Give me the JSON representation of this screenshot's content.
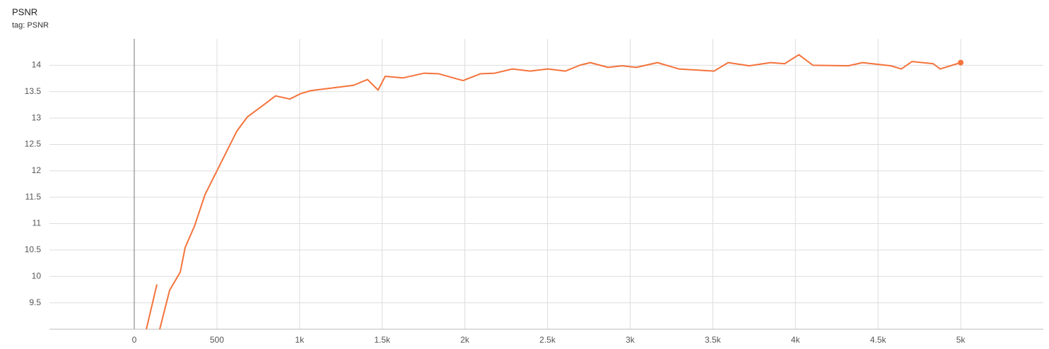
{
  "chart_data": {
    "type": "line",
    "title": "PSNR",
    "subtitle": "tag: PSNR",
    "x": [
      73,
      137,
      null,
      154,
      214,
      278,
      308,
      364,
      428,
      492,
      556,
      620,
      684,
      770,
      855,
      941,
      1005,
      1069,
      1198,
      1326,
      1411,
      1475,
      1518,
      1625,
      1754,
      1839,
      1989,
      2096,
      2181,
      2288,
      2395,
      2502,
      2609,
      2695,
      2759,
      2866,
      2951,
      3037,
      3165,
      3294,
      3508,
      3593,
      3721,
      3849,
      3935,
      4021,
      4106,
      4320,
      4406,
      4577,
      4641,
      4705,
      4833,
      4876,
      5000
    ],
    "series": [
      {
        "color": "#f4733c",
        "values": [
          9.0,
          9.85,
          null,
          9.0,
          9.74,
          10.08,
          10.55,
          10.95,
          11.55,
          11.95,
          12.35,
          12.75,
          13.02,
          13.22,
          13.42,
          13.36,
          13.46,
          13.52,
          13.57,
          13.62,
          13.73,
          13.53,
          13.79,
          13.76,
          13.85,
          13.84,
          13.71,
          13.84,
          13.85,
          13.93,
          13.89,
          13.93,
          13.89,
          14.0,
          14.05,
          13.96,
          13.99,
          13.96,
          14.05,
          13.93,
          13.89,
          14.05,
          13.99,
          14.05,
          14.03,
          14.2,
          14.0,
          13.99,
          14.05,
          13.99,
          13.93,
          14.07,
          14.03,
          13.93,
          14.05
        ]
      }
    ],
    "xlim": [
      -513,
      5500
    ],
    "ylim": [
      9.0,
      14.5
    ],
    "xticks": [
      0,
      500,
      {
        "value": 1000,
        "label": "1k"
      },
      {
        "value": 1500,
        "label": "1.5k"
      },
      {
        "value": 2000,
        "label": "2k"
      },
      {
        "value": 2500,
        "label": "2.5k"
      },
      {
        "value": 3000,
        "label": "3k"
      },
      {
        "value": 3500,
        "label": "3.5k"
      },
      {
        "value": 4000,
        "label": "4k"
      },
      {
        "value": 4500,
        "label": "4.5k"
      },
      {
        "value": 5000,
        "label": "5k"
      }
    ],
    "yticks": [
      9.5,
      10,
      10.5,
      11,
      11.5,
      12,
      12.5,
      13,
      13.5,
      14
    ],
    "grid": true
  }
}
